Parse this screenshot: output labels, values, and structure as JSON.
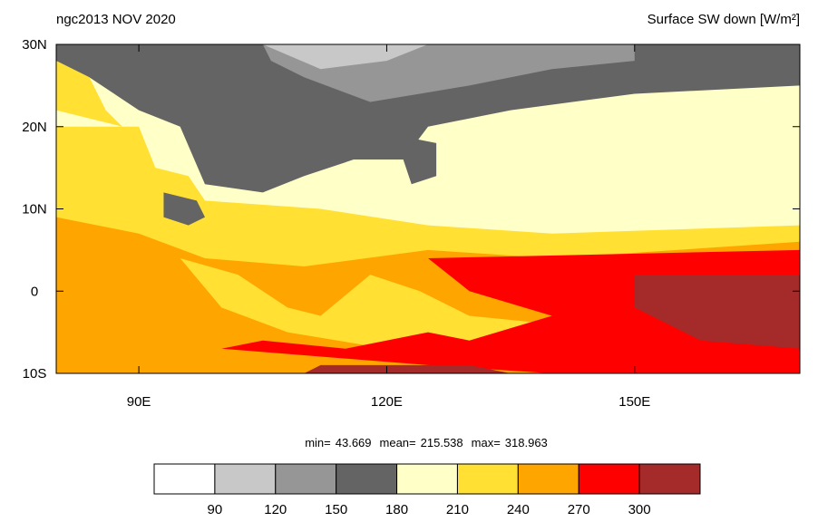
{
  "title": "ngc2013 NOV 2020",
  "units": "Surface SW down [W/m²]",
  "lon_range": [
    80,
    170
  ],
  "lat_range": [
    -10,
    30
  ],
  "lon_ticks": [
    {
      "value": 90,
      "label": "90E"
    },
    {
      "value": 120,
      "label": "120E"
    },
    {
      "value": 150,
      "label": "150E"
    }
  ],
  "lat_ticks": [
    {
      "value": 30,
      "label": "30N"
    },
    {
      "value": 20,
      "label": "20N"
    },
    {
      "value": 10,
      "label": "10N"
    },
    0,
    {
      "value": -10,
      "label": "10S"
    }
  ],
  "stats": [
    {
      "label": "min=",
      "value": 43.669
    },
    {
      "label": "mean=",
      "value": 215.538
    },
    {
      "label": "max=",
      "value": 318.963
    }
  ],
  "colorbar": {
    "levels": [
      90,
      120,
      150,
      180,
      210,
      240,
      270,
      300
    ],
    "colors": [
      "#ffffff",
      "#c8c8c8",
      "#969696",
      "#646464",
      "#ffffc8",
      "#ffe033",
      "#ffa500",
      "#ff0000",
      "#a52a2a"
    ]
  }
}
